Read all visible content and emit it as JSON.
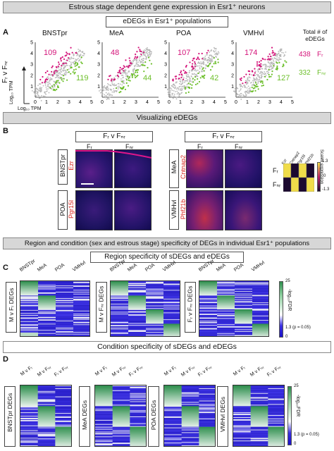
{
  "banners": {
    "title": "Estrous stage dependent gene expression in Esr1⁺ neurons",
    "visualizing": "Visualizing eDEGs",
    "region_condition": "Region and condition (sex and estrous stage) specificity of DEGs in individual Esr1⁺ populations",
    "condition_specificity": "Condition specificity of sDEGs and eDEGs"
  },
  "subbanners": {
    "edegs_in_esr1": "eDEGs in Esr1⁺ populations",
    "region_specificity": "Region specificity of sDEGs and eDEGs"
  },
  "panels": {
    "A": "A",
    "B": "B",
    "C": "C",
    "D": "D"
  },
  "panelA": {
    "y_axis_label": "Fᵣ v Fₙᵣ",
    "axis_caption": "Log₁₀ TPM",
    "ticks": [
      "0",
      "1",
      "2",
      "3",
      "4",
      "5"
    ],
    "total_header": "Total # of eDEGs",
    "total_fr": "438",
    "total_fnr": "332",
    "fr_label": "Fᵣ",
    "fnr_label": "Fₙᵣ",
    "plots": [
      {
        "region": "BNSTpr",
        "up": "109",
        "down": "119"
      },
      {
        "region": "MeA",
        "up": "48",
        "down": "44"
      },
      {
        "region": "POA",
        "up": "107",
        "down": "42"
      },
      {
        "region": "VMHvl",
        "up": "174",
        "down": "127"
      }
    ]
  },
  "panelB": {
    "comparison_title": "Fᵣ v Fₙᵣ",
    "fr_col": "Fᵣ",
    "fnr_col": "Fₙᵣ",
    "rows_left": [
      {
        "region": "BNSTpr",
        "gene": "Ezr"
      },
      {
        "region": "POA",
        "gene": "Pgr15l"
      }
    ],
    "rows_right": [
      {
        "region": "MeA",
        "gene": "Cntnap2"
      },
      {
        "region": "VMHvl",
        "gene": "Phf21b"
      }
    ],
    "mini_heatmap": {
      "cols": [
        "Ezr",
        "Cntnap2",
        "Pgr15l",
        "Phf21b"
      ],
      "rows": [
        "Fᵣ",
        "Fₙᵣ"
      ],
      "values": [
        [
          1.3,
          -1.3,
          1.3,
          -1.3
        ],
        [
          -1.3,
          1.3,
          -1.3,
          1.3
        ]
      ],
      "scale_label": "Scaled expression",
      "scale_max": "1.3",
      "scale_mid": "0",
      "scale_min": "-1.3"
    }
  },
  "panelC": {
    "col_labels": [
      "BNSTpr",
      "MeA",
      "POA",
      "VMHvl"
    ],
    "heatmaps": [
      {
        "label": "M v Fᵣ DEGs"
      },
      {
        "label": "M v Fₙᵣ DEGs"
      },
      {
        "label": "Fᵣ v Fₙᵣ DEGs"
      }
    ],
    "scale_top": "25",
    "scale_mid": "1.3 (p = 0.05)",
    "scale_bottom": "0",
    "scale_label": "-log₁₀FDR"
  },
  "panelD": {
    "col_labels": [
      "M v Fᵣ",
      "M v Fₙᵣ",
      "Fᵣ v Fₙᵣ"
    ],
    "heatmaps": [
      {
        "label": "BNSTpr DEGs"
      },
      {
        "label": "MeA DEGs"
      },
      {
        "label": "POA DEGs"
      },
      {
        "label": "VMHvl DEGs"
      }
    ],
    "scale_top": "25",
    "scale_mid": "1.3 (p = 0.05)",
    "scale_bottom": "0",
    "scale_label": "-log₁₀FDR"
  },
  "colors": {
    "magenta": "#d4147a",
    "green": "#6cbf2a",
    "heat_low": "#2a1fd6",
    "heat_high": "#2f8f4e",
    "banner": "#d7d7d7"
  }
}
